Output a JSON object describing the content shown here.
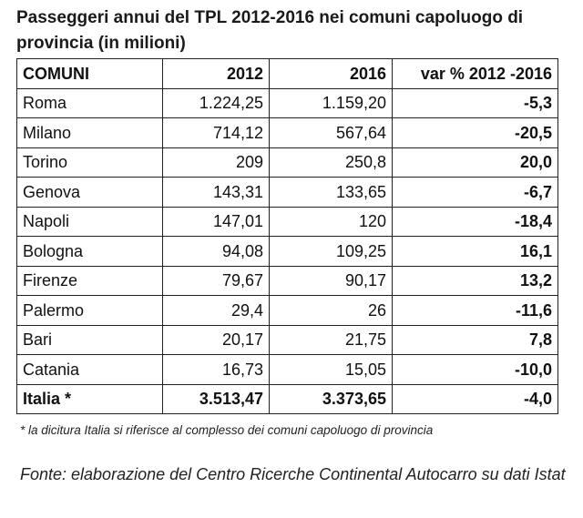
{
  "title": "Passeggeri annui del TPL 2012-2016 nei comuni capoluogo di provincia (in milioni)",
  "table": {
    "headers": [
      "COMUNI",
      "2012",
      "2016",
      "var % 2012 -2016"
    ],
    "rows": [
      {
        "comune": "Roma",
        "y2012": "1.224,25",
        "y2016": "1.159,20",
        "var": "-5,3"
      },
      {
        "comune": "Milano",
        "y2012": "714,12",
        "y2016": "567,64",
        "var": "-20,5"
      },
      {
        "comune": "Torino",
        "y2012": "209",
        "y2016": "250,8",
        "var": "20,0"
      },
      {
        "comune": "Genova",
        "y2012": "143,31",
        "y2016": "133,65",
        "var": "-6,7"
      },
      {
        "comune": "Napoli",
        "y2012": "147,01",
        "y2016": "120",
        "var": "-18,4"
      },
      {
        "comune": "Bologna",
        "y2012": "94,08",
        "y2016": "109,25",
        "var": "16,1"
      },
      {
        "comune": "Firenze",
        "y2012": "79,67",
        "y2016": "90,17",
        "var": "13,2"
      },
      {
        "comune": "Palermo",
        "y2012": "29,4",
        "y2016": "26",
        "var": "-11,6"
      },
      {
        "comune": "Bari",
        "y2012": "20,17",
        "y2016": "21,75",
        "var": "7,8"
      },
      {
        "comune": "Catania",
        "y2012": "16,73",
        "y2016": "15,05",
        "var": "-10,0"
      }
    ],
    "total": {
      "comune": "Italia *",
      "y2012": "3.513,47",
      "y2016": "3.373,65",
      "var": "-4,0"
    }
  },
  "footnote": "* la dicitura Italia si riferisce al complesso dei comuni capoluogo di provincia",
  "source": "Fonte: elaborazione del Centro Ricerche Continental Autocarro su dati Istat"
}
